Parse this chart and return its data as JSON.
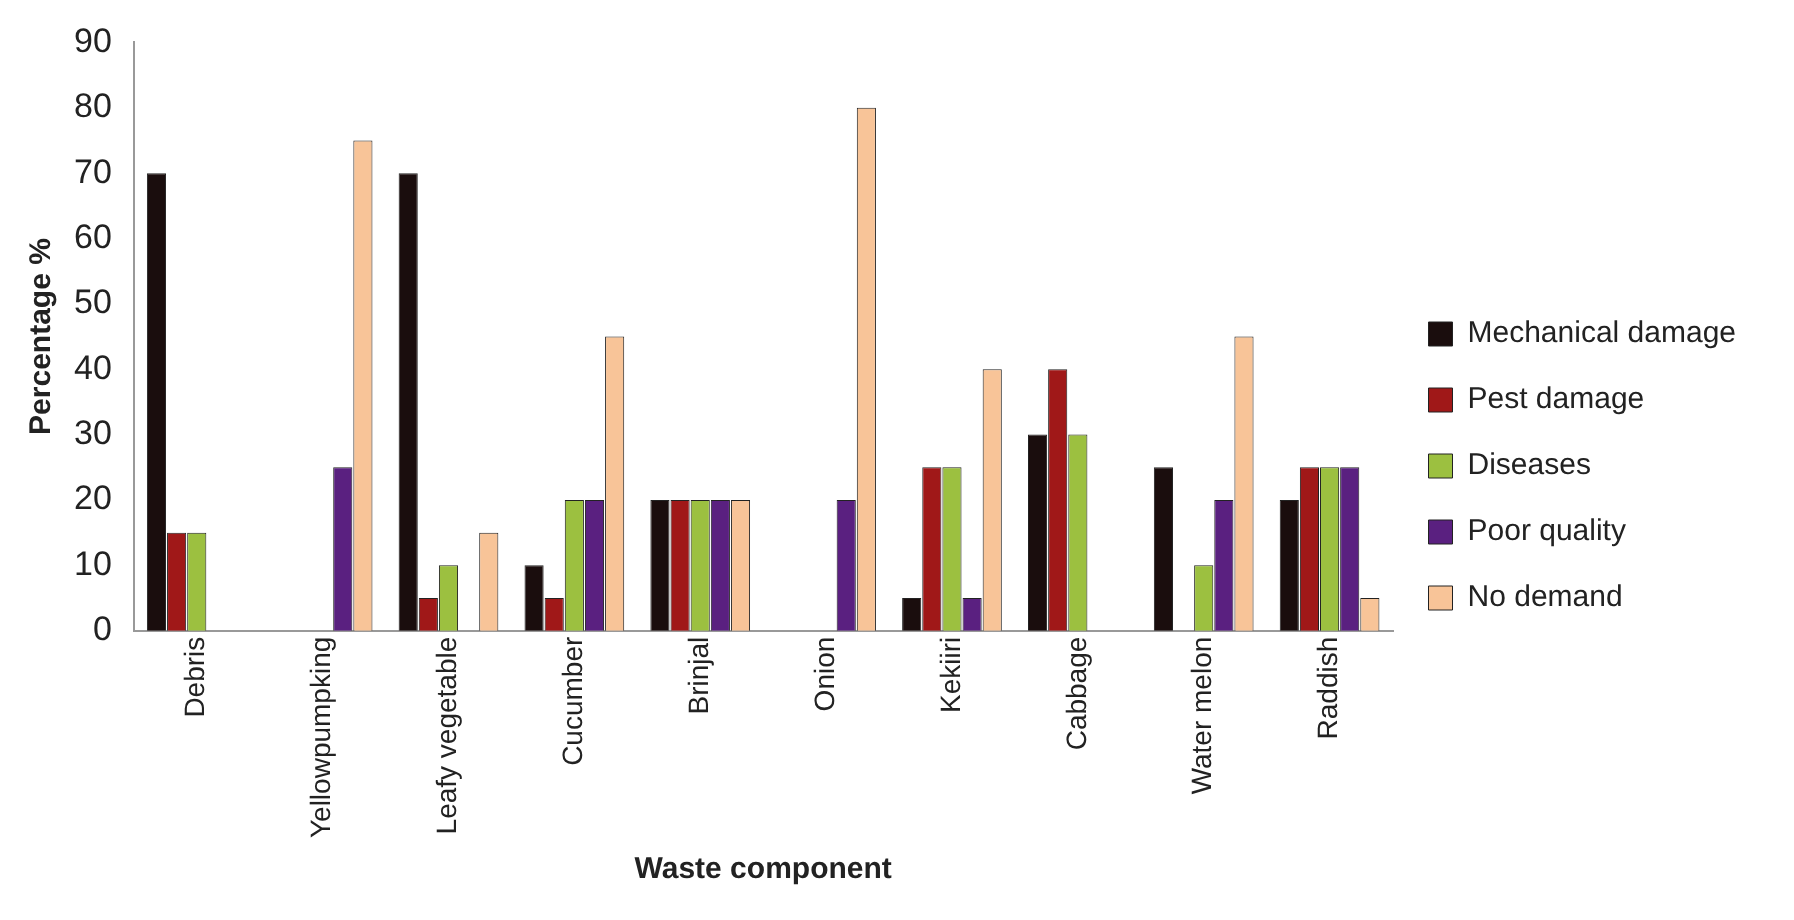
{
  "chart_data": {
    "type": "bar",
    "xlabel": "Waste component",
    "ylabel": "Percentage %",
    "categories": [
      "Debris",
      "Yellowpumpking",
      "Leafy vegetable",
      "Cucumber",
      "Brinjal",
      "Onion",
      "Kekiiri",
      "Cabbage",
      "Water melon",
      "Raddish"
    ],
    "series": [
      {
        "name": "Mechanical damage",
        "color": "#1a0d0d",
        "values": [
          70,
          0,
          70,
          10,
          20,
          0,
          5,
          30,
          25,
          20
        ]
      },
      {
        "name": "Pest damage",
        "color": "#a01818",
        "values": [
          15,
          0,
          5,
          5,
          20,
          0,
          25,
          40,
          0,
          25
        ]
      },
      {
        "name": "Diseases",
        "color": "#9cc040",
        "values": [
          15,
          0,
          10,
          20,
          20,
          0,
          25,
          30,
          10,
          25
        ]
      },
      {
        "name": "Poor quality",
        "color": "#5a2080",
        "values": [
          0,
          25,
          0,
          20,
          20,
          20,
          5,
          0,
          20,
          25
        ]
      },
      {
        "name": "No demand",
        "color": "#f8c498",
        "values": [
          0,
          75,
          15,
          45,
          20,
          80,
          40,
          0,
          45,
          5
        ]
      }
    ],
    "ylim": [
      0,
      90
    ],
    "yticks": [
      0,
      10,
      20,
      30,
      40,
      50,
      60,
      70,
      80,
      90
    ],
    "grid": false,
    "legend": "right"
  }
}
